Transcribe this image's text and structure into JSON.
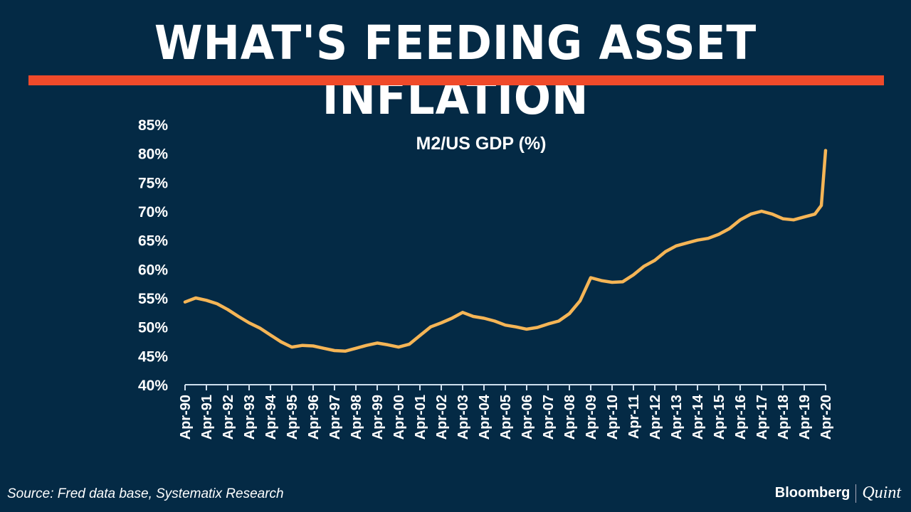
{
  "header": {
    "title": "WHAT'S FEEDING ASSET INFLATION"
  },
  "footer": {
    "source": "Source: Fred data base, Systematix Research",
    "logo_left": "Bloomberg",
    "logo_right": "Quint"
  },
  "colors": {
    "background": "#042a45",
    "accent": "#f04a2a",
    "line": "#f5b556"
  },
  "chart_data": {
    "type": "line",
    "title": "M2/US GDP (%)",
    "xlabel": "",
    "ylabel": "",
    "ylim": [
      40,
      85
    ],
    "yticks": [
      "85%",
      "80%",
      "75%",
      "70%",
      "65%",
      "60%",
      "55%",
      "50%",
      "45%",
      "40%"
    ],
    "ytick_values": [
      85,
      80,
      75,
      70,
      65,
      60,
      55,
      50,
      45,
      40
    ],
    "xticks": [
      "Apr-90",
      "Apr-91",
      "Apr-92",
      "Apr-93",
      "Apr-94",
      "Apr-95",
      "Apr-96",
      "Apr-97",
      "Apr-98",
      "Apr-99",
      "Apr-00",
      "Apr-01",
      "Apr-02",
      "Apr-03",
      "Apr-04",
      "Apr-05",
      "Apr-06",
      "Apr-07",
      "Apr-08",
      "Apr-09",
      "Apr-10",
      "Apr-11",
      "Apr-12",
      "Apr-13",
      "Apr-14",
      "Apr-15",
      "Apr-16",
      "Apr-17",
      "Apr-18",
      "Apr-19",
      "Apr-20"
    ],
    "grid": false,
    "series": [
      {
        "name": "M2/US GDP",
        "x": [
          1990,
          1990.5,
          1991,
          1991.5,
          1992,
          1992.5,
          1993,
          1993.5,
          1994,
          1994.5,
          1995,
          1995.5,
          1996,
          1996.5,
          1997,
          1997.5,
          1998,
          1998.5,
          1999,
          1999.5,
          2000,
          2000.5,
          2001,
          2001.5,
          2002,
          2002.5,
          2003,
          2003.5,
          2004,
          2004.5,
          2005,
          2005.5,
          2006,
          2006.5,
          2007,
          2007.5,
          2008,
          2008.5,
          2009,
          2009.5,
          2010,
          2010.5,
          2011,
          2011.5,
          2012,
          2012.5,
          2013,
          2013.5,
          2014,
          2014.5,
          2015,
          2015.5,
          2016,
          2016.5,
          2017,
          2017.5,
          2018,
          2018.5,
          2019,
          2019.5,
          2019.8,
          2020
        ],
        "values": [
          54.3,
          55,
          54.6,
          54,
          53,
          51.8,
          50.7,
          49.8,
          48.6,
          47.4,
          46.5,
          46.8,
          46.7,
          46.3,
          45.9,
          45.8,
          46.3,
          46.8,
          47.2,
          46.9,
          46.5,
          47,
          48.5,
          50,
          50.7,
          51.5,
          52.5,
          51.8,
          51.5,
          51,
          50.3,
          50,
          49.6,
          49.9,
          50.5,
          51,
          52.3,
          54.5,
          58.5,
          58,
          57.7,
          57.8,
          59,
          60.5,
          61.5,
          63,
          64,
          64.5,
          65,
          65.3,
          66,
          67,
          68.5,
          69.5,
          70,
          69.5,
          68.7,
          68.5,
          69,
          69.5,
          71,
          80.5
        ]
      }
    ]
  }
}
